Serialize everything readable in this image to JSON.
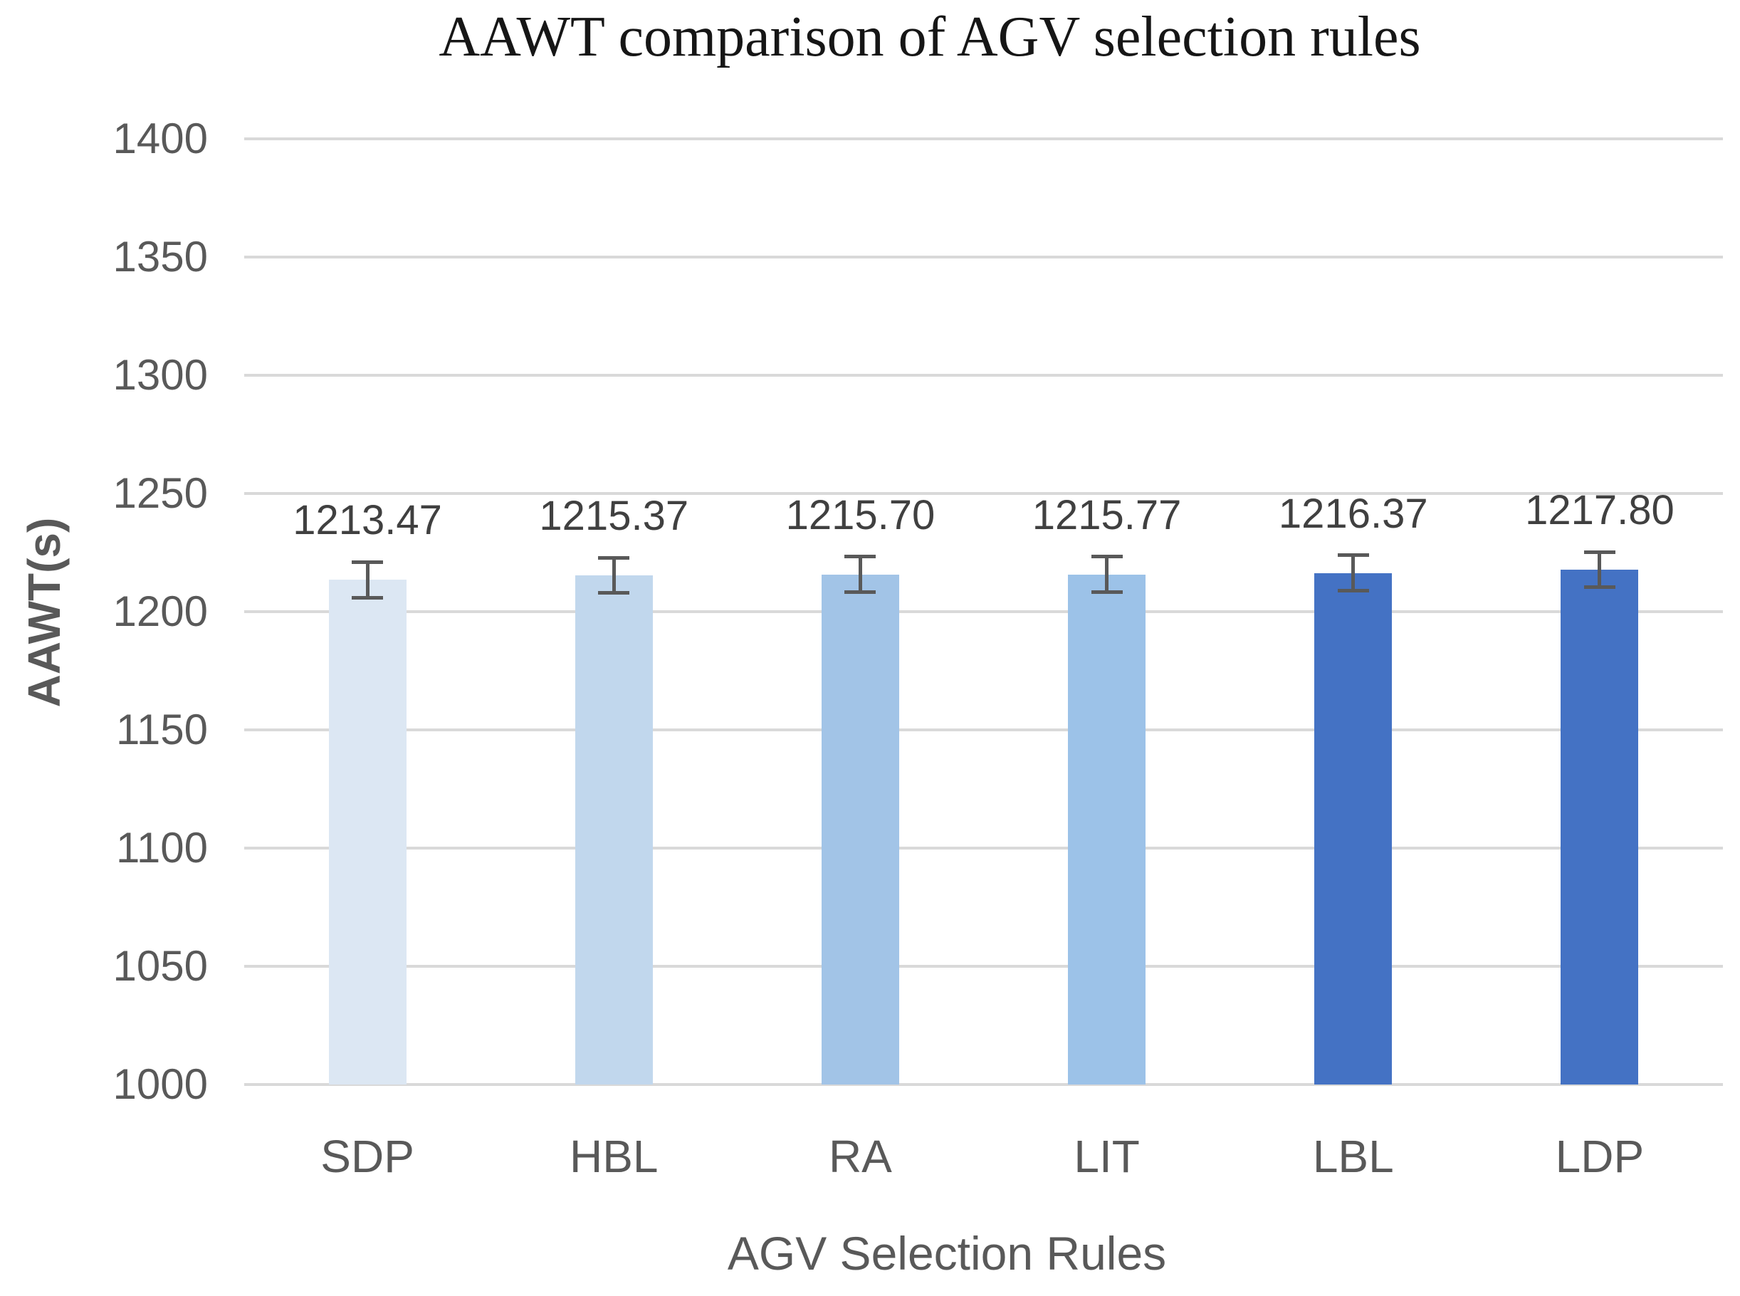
{
  "chart_data": {
    "type": "bar",
    "title": "AAWT comparison of AGV selection rules",
    "xlabel": "AGV Selection Rules",
    "ylabel": "AAWT(s)",
    "categories": [
      "SDP",
      "HBL",
      "RA",
      "LIT",
      "LBL",
      "LDP"
    ],
    "values": [
      1213.47,
      1215.37,
      1215.7,
      1215.77,
      1216.37,
      1217.8
    ],
    "value_labels": [
      "1213.47",
      "1215.37",
      "1215.70",
      "1215.77",
      "1216.37",
      "1217.80"
    ],
    "error_bars": {
      "visible": true,
      "symmetric": true,
      "approx_magnitude": 7.5
    },
    "ylim": [
      1000,
      1400
    ],
    "ytick_step": 50,
    "yticks": [
      1400,
      1350,
      1300,
      1250,
      1200,
      1150,
      1100,
      1050,
      1000
    ],
    "grid": "horizontal",
    "legend": "none",
    "bar_colors": [
      "#dce7f3",
      "#c1d7ed",
      "#a2c4e7",
      "#9cc2e8",
      "#4472c4",
      "#4472c4"
    ],
    "style": {
      "background": "#ffffff",
      "gridline_color": "#d9d9d9",
      "tick_label_color": "#595959",
      "axis_title_color": "#595959",
      "category_label_color": "#595959",
      "data_label_color": "#404040",
      "error_bar_color": "#595959",
      "title_color": "#161616"
    }
  }
}
